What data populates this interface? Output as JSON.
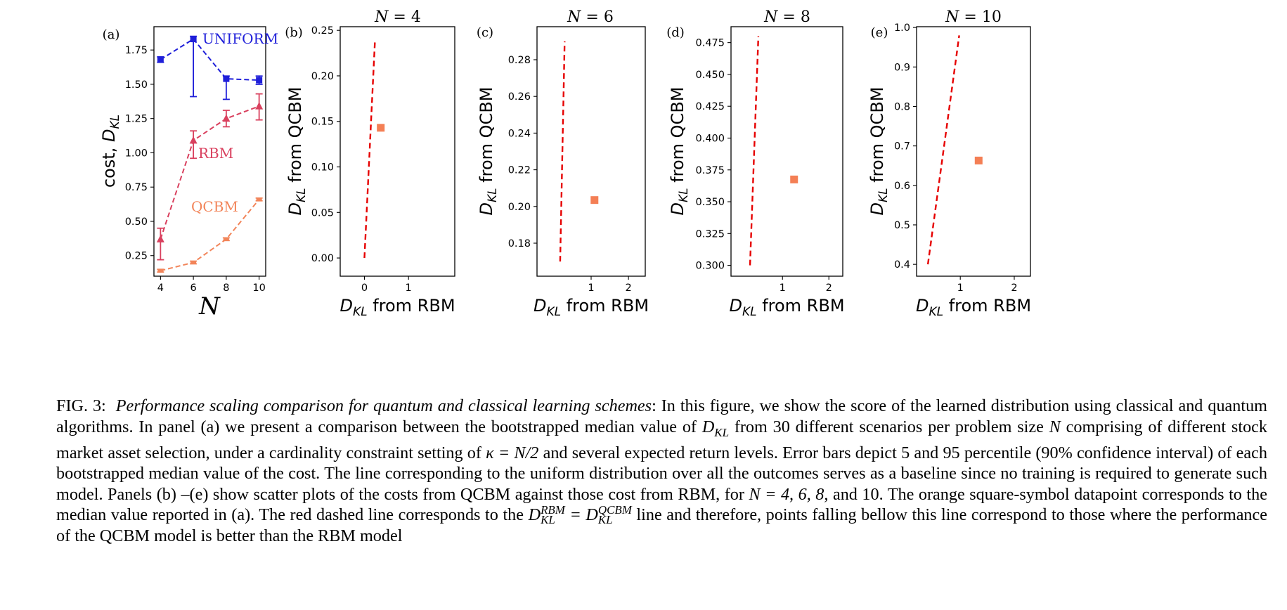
{
  "chart_data": [
    {
      "panel": "(a)",
      "type": "line",
      "title": "",
      "xlabel": "N",
      "ylabel": "cost, D_KL",
      "x": [
        4,
        6,
        8,
        10
      ],
      "xlim": [
        3.6,
        10.4
      ],
      "ylim": [
        0.1,
        1.92
      ],
      "xticks": [
        4,
        6,
        8,
        10
      ],
      "yticks": [
        0.25,
        0.5,
        0.75,
        1.0,
        1.25,
        1.5,
        1.75
      ],
      "ytick_labels": [
        "0.25",
        "0.50",
        "0.75",
        "1.00",
        "1.25",
        "1.50",
        "1.75"
      ],
      "series": [
        {
          "name": "UNIFORM",
          "color": "#1f1fd9",
          "marker": "square",
          "values": [
            1.68,
            1.83,
            1.54,
            1.53
          ],
          "err_low": [
            1.66,
            1.41,
            1.39,
            1.5
          ],
          "err_high": [
            1.7,
            1.85,
            1.56,
            1.56
          ]
        },
        {
          "name": "RBM",
          "color": "#d9405e",
          "marker": "triangle",
          "values": [
            0.37,
            1.09,
            1.25,
            1.34
          ],
          "err_low": [
            0.22,
            0.96,
            1.19,
            1.24
          ],
          "err_high": [
            0.45,
            1.16,
            1.31,
            1.43
          ]
        },
        {
          "name": "QCBM",
          "color": "#f2855a",
          "marker": "dash",
          "values": [
            0.14,
            0.2,
            0.37,
            0.66
          ],
          "err_low": [
            0.13,
            0.19,
            0.36,
            0.65
          ],
          "err_high": [
            0.15,
            0.21,
            0.38,
            0.67
          ]
        }
      ]
    },
    {
      "panel": "(b)",
      "type": "scatter",
      "title": "N = 4",
      "xlabel": "D_KL from RBM",
      "ylabel": "D_KL from QCBM",
      "xlim": [
        -0.55,
        2.05
      ],
      "ylim": [
        -0.02,
        0.254
      ],
      "xticks": [
        0,
        1
      ],
      "xtick_labels": [
        "0",
        "1"
      ],
      "yticks": [
        0.0,
        0.05,
        0.1,
        0.15,
        0.2,
        0.25
      ],
      "ytick_labels": [
        "0.00",
        "0.05",
        "0.10",
        "0.15",
        "0.20",
        "0.25"
      ],
      "point": {
        "x": 0.37,
        "y": 0.143
      },
      "diagonal": [
        0.0,
        0.24
      ]
    },
    {
      "panel": "(c)",
      "type": "scatter",
      "title": "N = 6",
      "xlabel": "D_KL from RBM",
      "ylabel": "D_KL from QCBM",
      "xlim": [
        -0.45,
        2.45
      ],
      "ylim": [
        0.162,
        0.298
      ],
      "xticks": [
        1,
        2
      ],
      "xtick_labels": [
        "1",
        "2"
      ],
      "yticks": [
        0.18,
        0.2,
        0.22,
        0.24,
        0.26,
        0.28
      ],
      "ytick_labels": [
        "0.18",
        "0.20",
        "0.22",
        "0.24",
        "0.26",
        "0.28"
      ],
      "point": {
        "x": 1.09,
        "y": 0.2035
      },
      "diagonal": [
        0.17,
        0.29
      ]
    },
    {
      "panel": "(d)",
      "type": "scatter",
      "title": "N = 8",
      "xlabel": "D_KL from RBM",
      "ylabel": "D_KL from QCBM",
      "xlim": [
        -0.11,
        2.3
      ],
      "ylim": [
        0.2915,
        0.4875
      ],
      "xticks": [
        1,
        2
      ],
      "xtick_labels": [
        "1",
        "2"
      ],
      "yticks": [
        0.3,
        0.325,
        0.35,
        0.375,
        0.4,
        0.425,
        0.45,
        0.475
      ],
      "ytick_labels": [
        "0.300",
        "0.325",
        "0.350",
        "0.375",
        "0.400",
        "0.425",
        "0.450",
        "0.475"
      ],
      "point": {
        "x": 1.25,
        "y": 0.3675
      },
      "diagonal": [
        0.3,
        0.48
      ]
    },
    {
      "panel": "(e)",
      "type": "scatter",
      "title": "N = 10",
      "xlabel": "D_KL from RBM",
      "ylabel": "D_KL from QCBM",
      "xlim": [
        0.19,
        2.3
      ],
      "ylim": [
        0.37,
        1.002
      ],
      "xticks": [
        1,
        2
      ],
      "xtick_labels": [
        "1",
        "2"
      ],
      "yticks": [
        0.4,
        0.5,
        0.6,
        0.7,
        0.8,
        0.9,
        1.0
      ],
      "ytick_labels": [
        "0.4",
        "0.5",
        "0.6",
        "0.7",
        "0.8",
        "0.9",
        "1.0"
      ],
      "point": {
        "x": 1.34,
        "y": 0.663
      },
      "diagonal": [
        0.4,
        0.98
      ]
    }
  ],
  "caption": {
    "label": "FIG. 3:",
    "title": "Performance scaling comparison for quantum and classical learning schemes",
    "p1": ": In this figure, we show the score of the learned distribution using classical and quantum algorithms. In panel (a) we present a comparison between the bootstrapped median value of ",
    "m1": "D",
    "m1sub": "KL",
    "p2": " from 30 different scenarios per problem size ",
    "m2": "N",
    "p3": " comprising of different stock market asset selection, under a cardinality constraint setting of ",
    "m3": "κ = N/2",
    "p4": " and several expected return levels. Error bars depict 5 and 95 percentile (90% confidence interval) of each bootstrapped median value of the cost. The line corresponding to the uniform distribution over all the outcomes serves as a baseline since no training is required to generate such model. Panels (b) –(e) show scatter plots of the costs from QCBM against those cost from RBM, for ",
    "m4": "N = 4, 6, 8,",
    "p5": " and 10. The orange square-symbol datapoint corresponds to the median value reported in (a). The red dashed line corresponds to the ",
    "m5": "D",
    "m5sup": "RBM",
    "m5sub": "KL",
    "m6": " = D",
    "m6sup": "QCBM",
    "m6sub": "KL",
    "p6": " line and therefore, points falling bellow this line correspond to those where the performance of the QCBM model is better than the RBM model"
  }
}
